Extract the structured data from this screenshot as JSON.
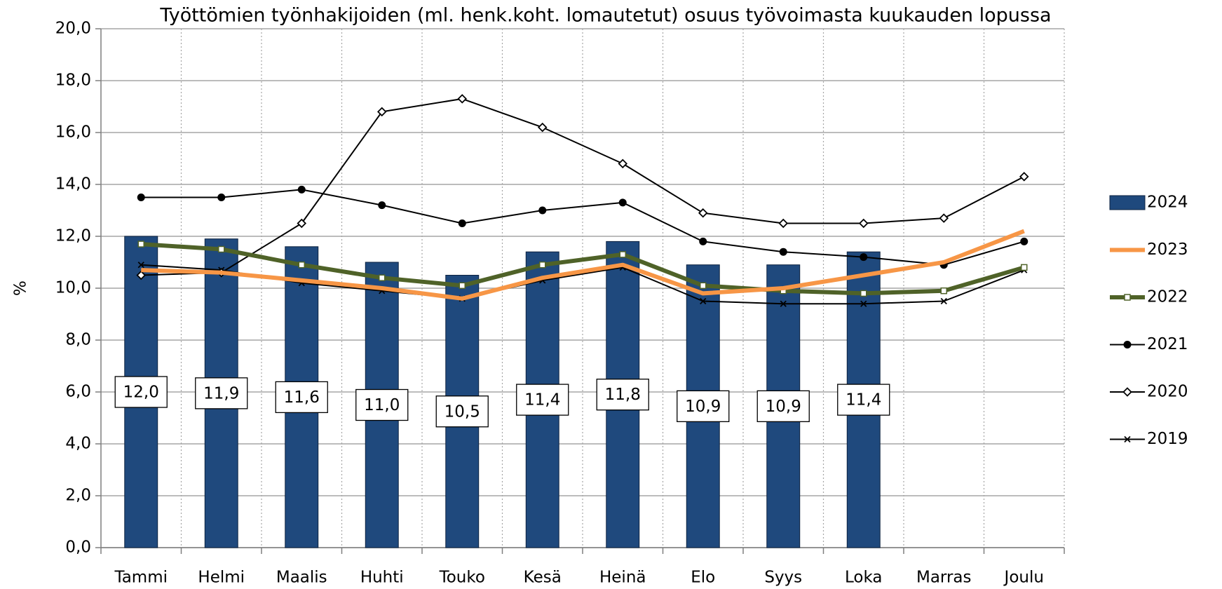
{
  "chart_data": {
    "type": "combo",
    "title": "Työttömien työnhakijoiden (ml. henk.koht. lomautetut) osuus työvoimasta kuukauden lopussa",
    "y_label": "%",
    "categories": [
      "Tammi",
      "Helmi",
      "Maalis",
      "Huhti",
      "Touko",
      "Kesä",
      "Heinä",
      "Elo",
      "Syys",
      "Loka",
      "Marras",
      "Joulu"
    ],
    "ylim": [
      0,
      20
    ],
    "yticks": [
      {
        "value": 0,
        "label": "0,0"
      },
      {
        "value": 2,
        "label": "2,0"
      },
      {
        "value": 4,
        "label": "4,0"
      },
      {
        "value": 6,
        "label": "6,0"
      },
      {
        "value": 8,
        "label": "8,0"
      },
      {
        "value": 10,
        "label": "10,0"
      },
      {
        "value": 12,
        "label": "12,0"
      },
      {
        "value": 14,
        "label": "14,0"
      },
      {
        "value": 16,
        "label": "16,0"
      },
      {
        "value": 18,
        "label": "18,0"
      },
      {
        "value": 20,
        "label": "20,0"
      }
    ],
    "grid": true,
    "legend": "right",
    "series": [
      {
        "name": "2024",
        "type": "bar",
        "color": "#1f497d",
        "values": [
          12.0,
          11.9,
          11.6,
          11.0,
          10.5,
          11.4,
          11.8,
          10.9,
          10.9,
          11.4,
          null,
          null
        ],
        "value_labels": [
          "12,0",
          "11,9",
          "11,6",
          "11,0",
          "10,5",
          "11,4",
          "11,8",
          "10,9",
          "10,9",
          "11,4",
          null,
          null
        ]
      },
      {
        "name": "2023",
        "type": "line",
        "color": "#f79646",
        "width": 6,
        "marker": "none",
        "values": [
          10.7,
          10.6,
          10.3,
          10.0,
          9.6,
          10.4,
          10.9,
          9.8,
          10.0,
          10.5,
          11.0,
          12.2
        ]
      },
      {
        "name": "2022",
        "type": "line",
        "color": "#4f6228",
        "width": 6,
        "marker": "square",
        "values": [
          11.7,
          11.5,
          10.9,
          10.4,
          10.1,
          10.9,
          11.3,
          10.1,
          9.9,
          9.8,
          9.9,
          10.8
        ]
      },
      {
        "name": "2021",
        "type": "line",
        "color": "#000000",
        "width": 2,
        "marker": "circle",
        "values": [
          13.5,
          13.5,
          13.8,
          13.2,
          12.5,
          13.0,
          13.3,
          11.8,
          11.4,
          11.2,
          10.9,
          11.8
        ]
      },
      {
        "name": "2020",
        "type": "line",
        "color": "#000000",
        "width": 2,
        "marker": "diamond",
        "values": [
          10.5,
          10.6,
          12.5,
          16.8,
          17.3,
          16.2,
          14.8,
          12.9,
          12.5,
          12.5,
          12.7,
          14.3
        ]
      },
      {
        "name": "2019",
        "type": "line",
        "color": "#000000",
        "width": 2,
        "marker": "cross",
        "values": [
          10.9,
          10.7,
          10.2,
          9.9,
          9.6,
          10.3,
          10.8,
          9.5,
          9.4,
          9.4,
          9.5,
          10.7
        ]
      }
    ]
  }
}
